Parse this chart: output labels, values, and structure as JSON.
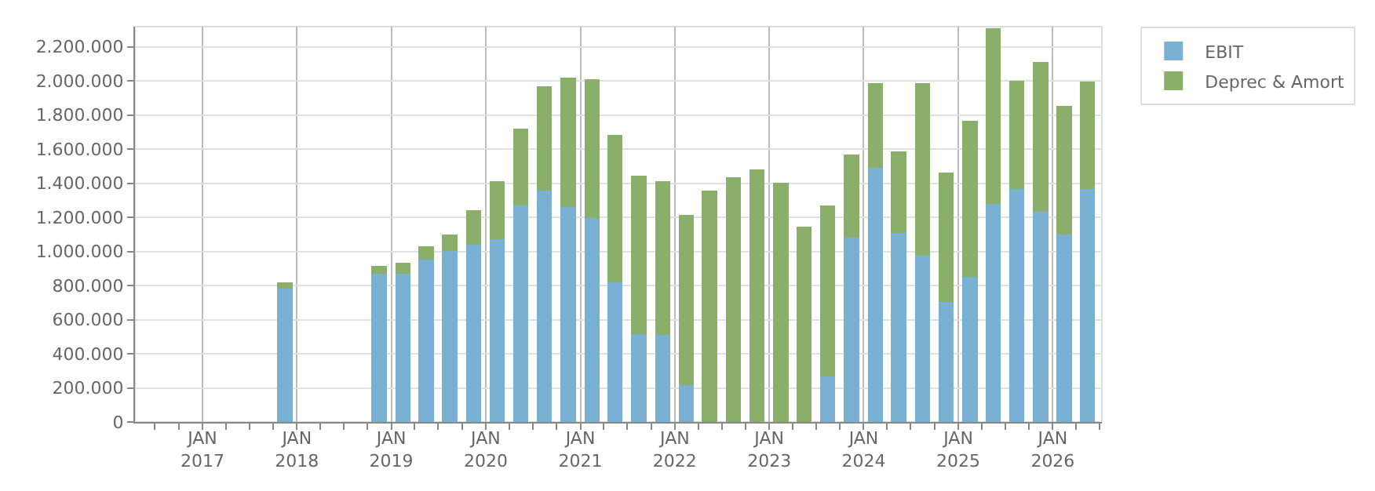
{
  "chart_data": {
    "type": "bar",
    "stacked": true,
    "legend": "top right",
    "grid": true,
    "x": [
      "2017-11-15",
      "2018-11-15",
      "2019-02-15",
      "2019-05-15",
      "2019-08-15",
      "2019-11-15",
      "2020-02-15",
      "2020-05-15",
      "2020-08-15",
      "2020-11-15",
      "2021-02-15",
      "2021-05-15",
      "2021-08-15",
      "2021-11-15",
      "2022-02-15",
      "2022-05-15",
      "2022-08-15",
      "2022-11-15",
      "2023-02-15",
      "2023-05-15",
      "2023-08-15",
      "2023-11-15",
      "2024-02-15",
      "2024-05-15",
      "2024-08-15",
      "2024-11-15",
      "2025-02-15",
      "2025-05-15",
      "2025-08-15",
      "2025-11-15",
      "2026-02-15",
      "2026-05-15"
    ],
    "series": [
      {
        "name": "EBIT",
        "color": "#7ab1d3",
        "values": [
          781000,
          870000,
          870000,
          950000,
          1003000,
          1038000,
          1073000,
          1268000,
          1357000,
          1259000,
          1197000,
          817000,
          516000,
          510000,
          215000,
          0,
          0,
          0,
          0,
          0,
          268000,
          1082000,
          1489000,
          1109000,
          976000,
          702000,
          852000,
          1277000,
          1365000,
          1233000,
          1100000,
          1365000
        ]
      },
      {
        "name": "Deprec & Amort",
        "color": "#8aaf6a",
        "values": [
          36000,
          44000,
          62000,
          79000,
          97000,
          203000,
          337000,
          451000,
          610000,
          761000,
          814000,
          867000,
          929000,
          900000,
          1000000,
          1357000,
          1436000,
          1480000,
          1401000,
          1144000,
          1000000,
          487000,
          496000,
          478000,
          1009000,
          761000,
          912000,
          1033000,
          637000,
          876000,
          752000,
          629000
        ]
      }
    ],
    "xlim": [
      "2016-04-15",
      "2026-07-10"
    ],
    "xticks": [
      {
        "value": "2017-01-01",
        "label": "JAN\n2017"
      },
      {
        "value": "2018-01-01",
        "label": "JAN\n2018"
      },
      {
        "value": "2019-01-01",
        "label": "JAN\n2019"
      },
      {
        "value": "2020-01-01",
        "label": "JAN\n2020"
      },
      {
        "value": "2021-01-01",
        "label": "JAN\n2021"
      },
      {
        "value": "2022-01-01",
        "label": "JAN\n2022"
      },
      {
        "value": "2023-01-01",
        "label": "JAN\n2023"
      },
      {
        "value": "2024-01-01",
        "label": "JAN\n2024"
      },
      {
        "value": "2025-01-01",
        "label": "JAN\n2025"
      },
      {
        "value": "2026-01-01",
        "label": "JAN\n2026"
      }
    ],
    "ylim": [
      0,
      2318000
    ],
    "yticks": [
      0,
      {
        "value": 200000,
        "label": "200.000"
      },
      {
        "value": 400000,
        "label": "400.000"
      },
      {
        "value": 600000,
        "label": "600.000"
      },
      {
        "value": 800000,
        "label": "800.000"
      },
      {
        "value": 1000000,
        "label": "1.000.000"
      },
      {
        "value": 1200000,
        "label": "1.200.000"
      },
      {
        "value": 1400000,
        "label": "1.400.000"
      },
      {
        "value": 1600000,
        "label": "1.600.000"
      },
      {
        "value": 1800000,
        "label": "1.800.000"
      },
      {
        "value": 2000000,
        "label": "2.000.000"
      },
      {
        "value": 2200000,
        "label": "2.200.000"
      }
    ]
  }
}
